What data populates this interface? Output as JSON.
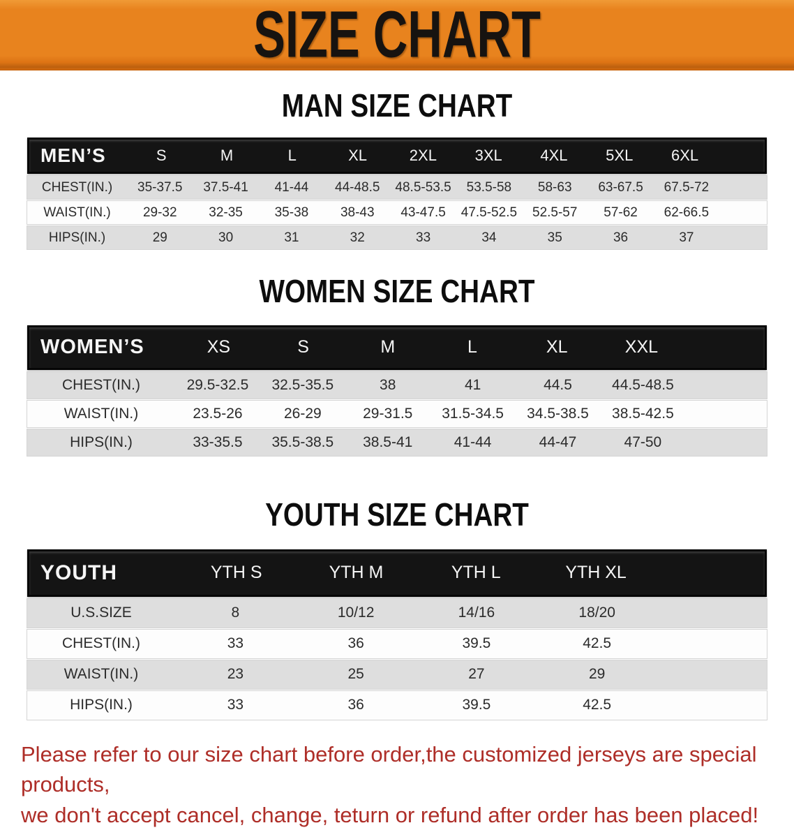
{
  "banner": {
    "title": "SIZE CHART"
  },
  "sections": [
    {
      "heading": "MAN SIZE CHART",
      "table": {
        "label": "MEN’S",
        "columns": [
          "S",
          "M",
          "L",
          "XL",
          "2XL",
          "3XL",
          "4XL",
          "5XL",
          "6XL"
        ],
        "rows": [
          {
            "label": "CHEST(IN.)",
            "values": [
              "35-37.5",
              "37.5-41",
              "41-44",
              "44-48.5",
              "48.5-53.5",
              "53.5-58",
              "58-63",
              "63-67.5",
              "67.5-72"
            ]
          },
          {
            "label": "WAIST(IN.)",
            "values": [
              "29-32",
              "32-35",
              "35-38",
              "38-43",
              "43-47.5",
              "47.5-52.5",
              "52.5-57",
              "57-62",
              "62-66.5"
            ]
          },
          {
            "label": "HIPS(IN.)",
            "values": [
              "29",
              "30",
              "31",
              "32",
              "33",
              "34",
              "35",
              "36",
              "37"
            ]
          }
        ]
      }
    },
    {
      "heading": "WOMEN SIZE CHART",
      "table": {
        "label": "WOMEN’S",
        "columns": [
          "XS",
          "S",
          "M",
          "L",
          "XL",
          "XXL"
        ],
        "rows": [
          {
            "label": "CHEST(IN.)",
            "values": [
              "29.5-32.5",
              "32.5-35.5",
              "38",
              "41",
              "44.5",
              "44.5-48.5"
            ]
          },
          {
            "label": "WAIST(IN.)",
            "values": [
              "23.5-26",
              "26-29",
              "29-31.5",
              "31.5-34.5",
              "34.5-38.5",
              "38.5-42.5"
            ]
          },
          {
            "label": "HIPS(IN.)",
            "values": [
              "33-35.5",
              "35.5-38.5",
              "38.5-41",
              "41-44",
              "44-47",
              "47-50"
            ]
          }
        ]
      }
    },
    {
      "heading": "YOUTH SIZE CHART",
      "table": {
        "label": "YOUTH",
        "columns": [
          "YTH S",
          "YTH M",
          "YTH L",
          "YTH XL"
        ],
        "rows": [
          {
            "label": "U.S.SIZE",
            "values": [
              "8",
              "10/12",
              "14/16",
              "18/20"
            ]
          },
          {
            "label": "CHEST(IN.)",
            "values": [
              "33",
              "36",
              "39.5",
              "42.5"
            ]
          },
          {
            "label": "WAIST(IN.)",
            "values": [
              "23",
              "25",
              "27",
              "29"
            ]
          },
          {
            "label": "HIPS(IN.)",
            "values": [
              "33",
              "36",
              "39.5",
              "42.5"
            ]
          }
        ]
      }
    }
  ],
  "disclaimer": {
    "line1": "Please refer to our size chart before order,the customized jerseys are special products,",
    "line2": "we don't accept cancel, change, teturn or refund after order has been placed!"
  },
  "colors": {
    "banner_bg": "#E8831E",
    "banner_text": "#171310",
    "header_bar_bg": "#141414",
    "header_bar_text": "#F5F5F5",
    "row_gray": "#DEDEDE",
    "row_white": "#FDFDFD",
    "disclaimer_red": "#AE2E28"
  }
}
